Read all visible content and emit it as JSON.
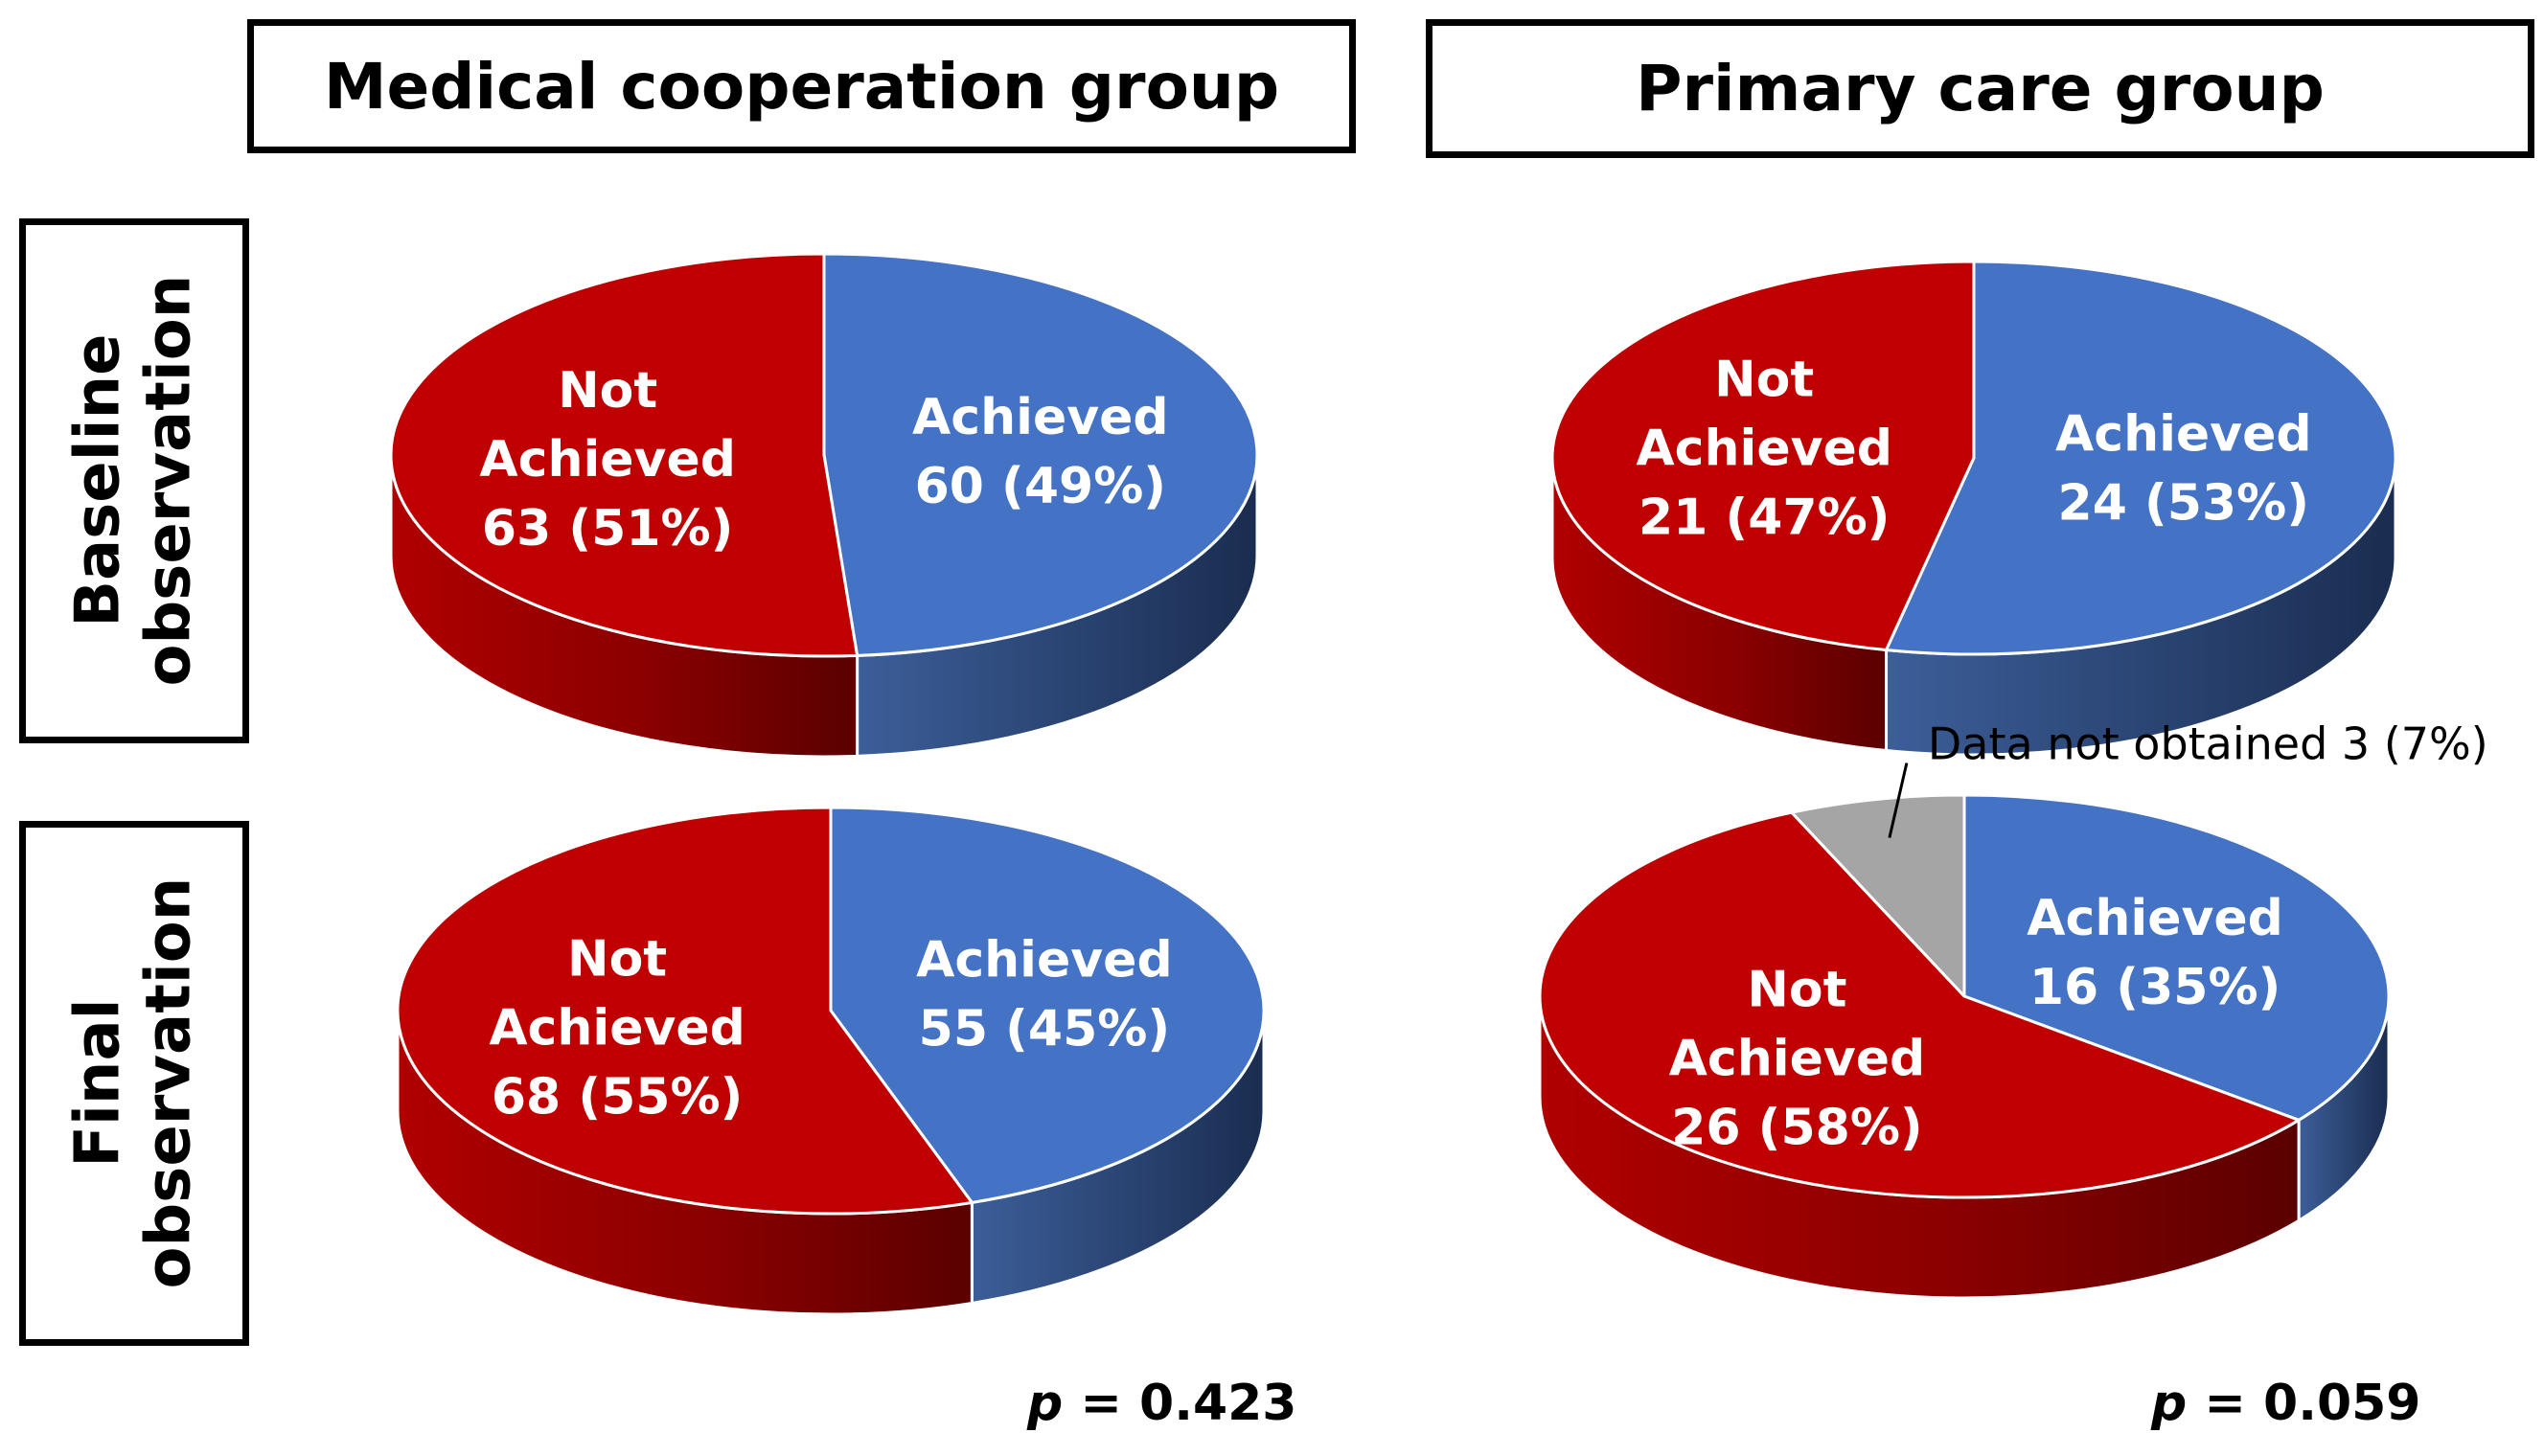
{
  "column_headers": [
    "Medical cooperation group",
    "Primary care group"
  ],
  "row_headers": [
    [
      "Baseline",
      "observation"
    ],
    [
      "Final",
      "observation"
    ]
  ],
  "p_values": [
    {
      "symbol": "p",
      "text": " = 0.423"
    },
    {
      "symbol": "p",
      "text": " = 0.059"
    }
  ],
  "colors": {
    "achieved": "#4472C4",
    "not_achieved": "#C00000",
    "not_obtained": "#A5A5A5"
  },
  "chart_data": [
    {
      "type": "pie",
      "group": "Medical cooperation group",
      "observation": "Baseline observation",
      "slices": [
        {
          "label": "Achieved",
          "value": 60,
          "percent": 49,
          "lines": [
            "Achieved",
            "60 (49%)"
          ],
          "color_key": "achieved"
        },
        {
          "label": "Not Achieved",
          "value": 63,
          "percent": 51,
          "lines": [
            "Not",
            "Achieved",
            "63 (51%)"
          ],
          "color_key": "not_achieved"
        }
      ]
    },
    {
      "type": "pie",
      "group": "Primary care group",
      "observation": "Baseline observation",
      "slices": [
        {
          "label": "Achieved",
          "value": 24,
          "percent": 53,
          "lines": [
            "Achieved",
            "24 (53%)"
          ],
          "color_key": "achieved"
        },
        {
          "label": "Not Achieved",
          "value": 21,
          "percent": 47,
          "lines": [
            "Not",
            "Achieved",
            "21 (47%)"
          ],
          "color_key": "not_achieved"
        }
      ]
    },
    {
      "type": "pie",
      "group": "Medical cooperation group",
      "observation": "Final observation",
      "slices": [
        {
          "label": "Achieved",
          "value": 55,
          "percent": 45,
          "lines": [
            "Achieved",
            "55 (45%)"
          ],
          "color_key": "achieved"
        },
        {
          "label": "Not Achieved",
          "value": 68,
          "percent": 55,
          "lines": [
            "Not",
            "Achieved",
            "68 (55%)"
          ],
          "color_key": "not_achieved"
        }
      ]
    },
    {
      "type": "pie",
      "group": "Primary care group",
      "observation": "Final observation",
      "slices": [
        {
          "label": "Achieved",
          "value": 16,
          "percent": 35,
          "lines": [
            "Achieved",
            "16 (35%)"
          ],
          "color_key": "achieved"
        },
        {
          "label": "Not Achieved",
          "value": 26,
          "percent": 58,
          "lines": [
            "Not",
            "Achieved",
            "26 (58%)"
          ],
          "color_key": "not_achieved"
        },
        {
          "label": "Data not obtained",
          "value": 3,
          "percent": 7,
          "lines": [
            "Data not obtained 3 (7%)"
          ],
          "color_key": "not_obtained",
          "callout": true
        }
      ]
    }
  ]
}
